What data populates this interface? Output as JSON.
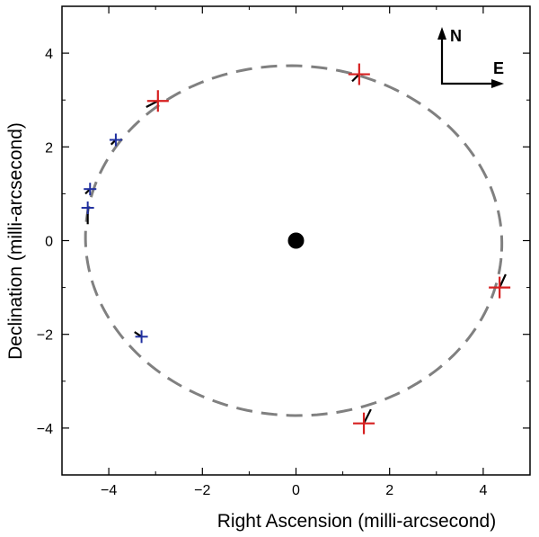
{
  "chart_data": {
    "type": "scatter",
    "title": "",
    "xlabel": "Right Ascension (milli-arcsecond)",
    "ylabel": "Declination (milli-arcsecond)",
    "xlim": [
      -5,
      5
    ],
    "ylim": [
      -5,
      5
    ],
    "xticks": [
      -4,
      -2,
      0,
      2,
      4
    ],
    "yticks": [
      -4,
      -2,
      0,
      2,
      4
    ],
    "grid": false,
    "orbit": {
      "name": "orbit",
      "style": "dashed",
      "color": "#808080",
      "center": [
        -0.05,
        0.0
      ],
      "semi_axis_a": 4.45,
      "semi_axis_b": 3.73,
      "rotation_deg": -3
    },
    "central_star": {
      "x": 0,
      "y": 0,
      "color": "#000000"
    },
    "series": [
      {
        "name": "red",
        "color": "#d62020",
        "points": [
          {
            "x": 1.35,
            "y": 3.55,
            "residual_to": [
              1.2,
              3.4
            ]
          },
          {
            "x": -2.95,
            "y": 2.98,
            "residual_to": [
              -3.2,
              2.85
            ]
          },
          {
            "x": 4.35,
            "y": -1.0,
            "residual_to": [
              4.48,
              -0.72
            ]
          },
          {
            "x": 1.45,
            "y": -3.9,
            "residual_to": [
              1.6,
              -3.6
            ]
          }
        ]
      },
      {
        "name": "blue",
        "color": "#2030a0",
        "points": [
          {
            "x": -3.85,
            "y": 2.15,
            "residual_to": [
              -3.95,
              2.05
            ]
          },
          {
            "x": -4.4,
            "y": 1.1,
            "residual_to": [
              -4.5,
              1.0
            ]
          },
          {
            "x": -4.45,
            "y": 0.7,
            "residual_to": [
              -4.45,
              0.35
            ]
          },
          {
            "x": -3.3,
            "y": -2.05,
            "residual_to": [
              -3.45,
              -1.95
            ]
          }
        ]
      }
    ],
    "compass": {
      "north_label": "N",
      "east_label": "E"
    }
  }
}
